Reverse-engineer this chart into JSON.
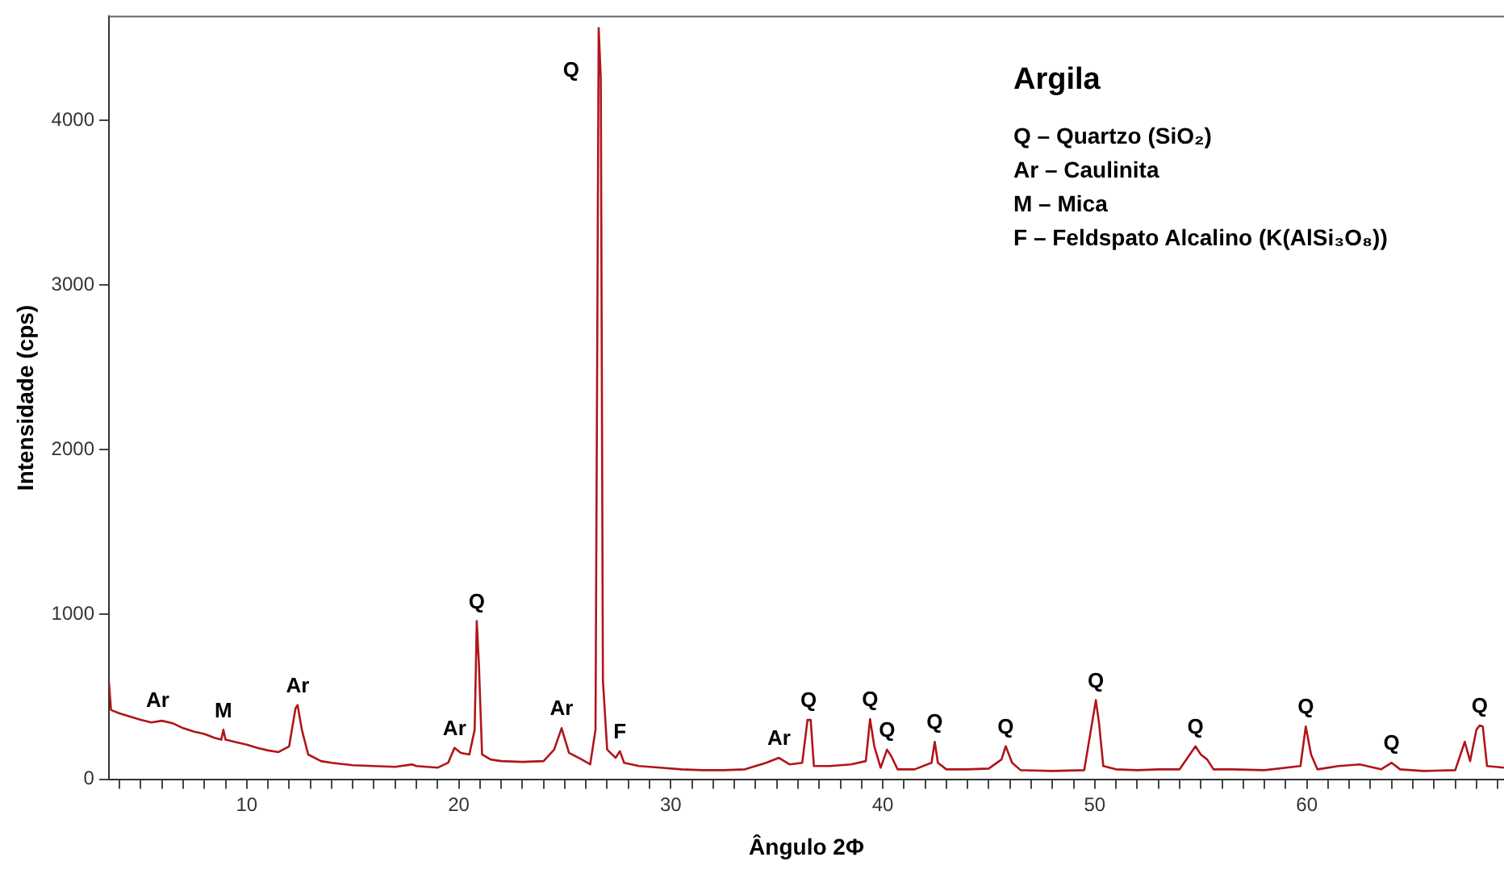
{
  "chart_data": {
    "type": "line",
    "xlabel": "Ângulo 2Φ",
    "ylabel": "Intensidade (cps)",
    "xlim": [
      3.5,
      69.3
    ],
    "ylim": [
      0,
      4630
    ],
    "xticks": [
      {
        "value": 4,
        "label": null
      },
      {
        "value": 5,
        "label": null
      },
      {
        "value": 6,
        "label": null
      },
      {
        "value": 7,
        "label": null
      },
      {
        "value": 8,
        "label": null
      },
      {
        "value": 9,
        "label": null
      },
      10,
      {
        "value": 11,
        "label": null
      },
      {
        "value": 12,
        "label": null
      },
      {
        "value": 13,
        "label": null
      },
      {
        "value": 14,
        "label": null
      },
      {
        "value": 15,
        "label": null
      },
      {
        "value": 16,
        "label": null
      },
      {
        "value": 17,
        "label": null
      },
      {
        "value": 18,
        "label": null
      },
      {
        "value": 19,
        "label": null
      },
      20,
      {
        "value": 21,
        "label": null
      },
      {
        "value": 22,
        "label": null
      },
      {
        "value": 23,
        "label": null
      },
      {
        "value": 24,
        "label": null
      },
      {
        "value": 25,
        "label": null
      },
      {
        "value": 26,
        "label": null
      },
      {
        "value": 27,
        "label": null
      },
      {
        "value": 28,
        "label": null
      },
      {
        "value": 29,
        "label": null
      },
      30,
      {
        "value": 31,
        "label": null
      },
      {
        "value": 32,
        "label": null
      },
      {
        "value": 33,
        "label": null
      },
      {
        "value": 34,
        "label": null
      },
      {
        "value": 35,
        "label": null
      },
      {
        "value": 36,
        "label": null
      },
      {
        "value": 37,
        "label": null
      },
      {
        "value": 38,
        "label": null
      },
      {
        "value": 39,
        "label": null
      },
      40,
      {
        "value": 41,
        "label": null
      },
      {
        "value": 42,
        "label": null
      },
      {
        "value": 43,
        "label": null
      },
      {
        "value": 44,
        "label": null
      },
      {
        "value": 45,
        "label": null
      },
      {
        "value": 46,
        "label": null
      },
      {
        "value": 47,
        "label": null
      },
      {
        "value": 48,
        "label": null
      },
      {
        "value": 49,
        "label": null
      },
      50,
      {
        "value": 51,
        "label": null
      },
      {
        "value": 52,
        "label": null
      },
      {
        "value": 53,
        "label": null
      },
      {
        "value": 54,
        "label": null
      },
      {
        "value": 55,
        "label": null
      },
      {
        "value": 56,
        "label": null
      },
      {
        "value": 57,
        "label": null
      },
      {
        "value": 58,
        "label": null
      },
      {
        "value": 59,
        "label": null
      },
      60,
      {
        "value": 61,
        "label": null
      },
      {
        "value": 62,
        "label": null
      },
      {
        "value": 63,
        "label": null
      },
      {
        "value": 64,
        "label": null
      },
      {
        "value": 65,
        "label": null
      },
      {
        "value": 66,
        "label": null
      },
      {
        "value": 67,
        "label": null
      },
      {
        "value": 68,
        "label": null
      },
      {
        "value": 69,
        "label": null
      }
    ],
    "yticks": [
      0,
      1000,
      2000,
      3000,
      4000
    ],
    "grid": false,
    "marker": "none",
    "line_style": "solid",
    "series": [
      {
        "color": "#b0151a",
        "x": [
          3.5,
          3.6,
          4,
          4.5,
          5,
          5.5,
          6,
          6.5,
          7,
          7.5,
          8,
          8.5,
          8.8,
          8.9,
          9.0,
          9.5,
          10,
          10.5,
          11,
          11.5,
          12,
          12.3,
          12.4,
          12.6,
          12.9,
          13.5,
          14,
          15,
          16,
          17,
          17.8,
          18,
          19,
          19.5,
          19.8,
          20.1,
          20.5,
          20.75,
          20.85,
          20.95,
          21.1,
          21.5,
          22,
          23,
          24,
          24.5,
          24.85,
          25.2,
          25.8,
          26.2,
          26.45,
          26.6,
          26.7,
          26.8,
          27.0,
          27.4,
          27.6,
          27.8,
          28.5,
          29.5,
          30.5,
          31.5,
          32.5,
          33.5,
          34.5,
          35.1,
          35.6,
          36.2,
          36.45,
          36.6,
          36.75,
          37.5,
          38.5,
          39.2,
          39.4,
          39.6,
          39.9,
          40.2,
          40.4,
          40.7,
          41.5,
          42.3,
          42.45,
          42.6,
          43,
          44,
          45,
          45.6,
          45.8,
          46.1,
          46.5,
          48,
          49.5,
          50.05,
          50.2,
          50.4,
          51,
          52,
          53,
          54,
          54.75,
          55.0,
          55.3,
          55.6,
          56.5,
          58,
          59.7,
          59.95,
          60.2,
          60.5,
          61.5,
          62.5,
          63.5,
          64.0,
          64.4,
          65.5,
          67,
          67.45,
          67.7,
          68.0,
          68.15,
          68.3,
          68.5,
          69.3
        ],
        "values": [
          590,
          420,
          400,
          380,
          360,
          345,
          355,
          340,
          310,
          290,
          275,
          250,
          240,
          300,
          240,
          225,
          210,
          190,
          175,
          165,
          200,
          430,
          450,
          300,
          150,
          110,
          100,
          85,
          80,
          75,
          90,
          80,
          70,
          100,
          190,
          160,
          150,
          300,
          960,
          700,
          150,
          120,
          110,
          105,
          110,
          180,
          310,
          160,
          120,
          90,
          300,
          4560,
          4250,
          600,
          180,
          130,
          170,
          100,
          80,
          70,
          60,
          55,
          55,
          60,
          100,
          130,
          90,
          100,
          360,
          360,
          80,
          80,
          90,
          110,
          365,
          200,
          70,
          180,
          140,
          60,
          60,
          100,
          227,
          100,
          60,
          60,
          65,
          120,
          200,
          100,
          55,
          50,
          55,
          480,
          340,
          80,
          60,
          55,
          60,
          60,
          200,
          150,
          120,
          60,
          60,
          55,
          80,
          320,
          150,
          60,
          80,
          90,
          60,
          100,
          60,
          50,
          55,
          227,
          110,
          300,
          326,
          320,
          80,
          70
        ]
      }
    ],
    "annotations": [
      "Argila",
      "Q – Quartzo (SiO₂)",
      "Ar – Caulinita",
      "M – Mica",
      "F – Feldspato Alcalino (K(AlSi₃O₈))",
      {
        "text": "Ar",
        "x": 5.8,
        "y": 360
      },
      {
        "text": "M",
        "x": 8.9,
        "y": 300
      },
      {
        "text": "Ar",
        "x": 12.4,
        "y": 450
      },
      {
        "text": "Ar",
        "x": 19.8,
        "y": 190
      },
      {
        "text": "Q",
        "x": 20.85,
        "y": 960
      },
      {
        "text": "Ar",
        "x": 24.85,
        "y": 310
      },
      {
        "text": "Q",
        "x": 26.6,
        "y": 4560
      },
      {
        "text": "F",
        "x": 27.6,
        "y": 170
      },
      {
        "text": "Ar",
        "x": 35.1,
        "y": 130
      },
      {
        "text": "Q",
        "x": 36.5,
        "y": 360
      },
      {
        "text": "Q",
        "x": 39.4,
        "y": 365
      },
      {
        "text": "Q",
        "x": 40.2,
        "y": 180
      },
      {
        "text": "Q",
        "x": 42.45,
        "y": 227
      },
      {
        "text": "Q",
        "x": 45.8,
        "y": 200
      },
      {
        "text": "Q",
        "x": 50.05,
        "y": 480
      },
      {
        "text": "Q",
        "x": 54.75,
        "y": 200
      },
      {
        "text": "Q",
        "x": 59.95,
        "y": 320
      },
      {
        "text": "Q",
        "x": 64.0,
        "y": 100
      },
      {
        "text": "Q",
        "x": 68.15,
        "y": 326
      }
    ]
  }
}
